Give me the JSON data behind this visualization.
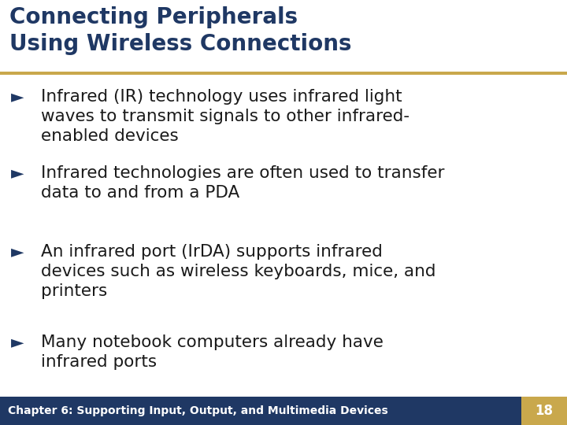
{
  "title_line1": "Connecting Peripherals",
  "title_line2": "Using Wireless Connections",
  "title_color": "#1F3864",
  "title_fontsize": 20,
  "separator_color": "#C9A84C",
  "body_fontsize": 15.5,
  "bullet_points": [
    "Infrared (IR) technology uses infrared light\nwaves to transmit signals to other infrared-\nenabled devices",
    "Infrared technologies are often used to transfer\ndata to and from a PDA",
    "An infrared port (IrDA) supports infrared\ndevices such as wireless keyboards, mice, and\nprinters",
    "Many notebook computers already have\ninfrared ports"
  ],
  "footer_bg_color": "#1F3864",
  "footer_text": "Chapter 6: Supporting Input, Output, and Multimedia Devices",
  "footer_text_color": "#ffffff",
  "footer_fontsize": 10,
  "page_number": "18",
  "page_number_bg": "#C9A84C",
  "page_number_color": "#ffffff",
  "background_color": "#ffffff"
}
